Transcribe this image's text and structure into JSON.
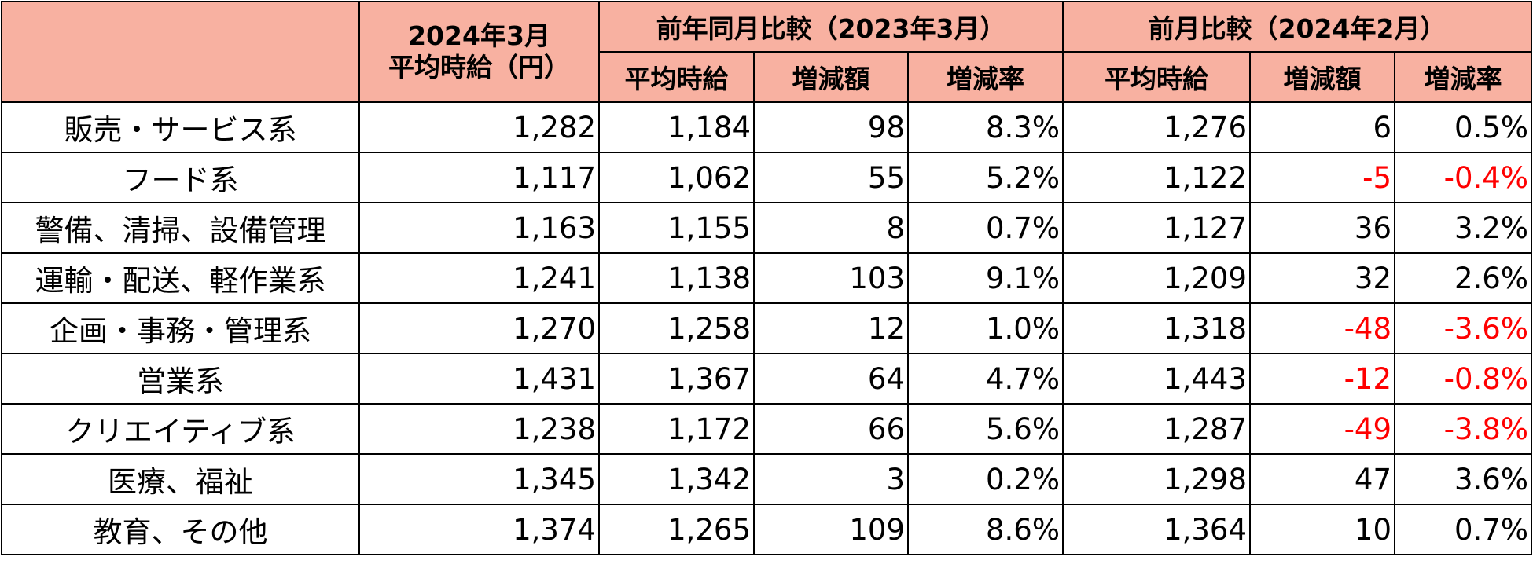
{
  "table": {
    "header": {
      "corner": "",
      "current": [
        "2024年3月",
        "平均時給（円）"
      ],
      "groups": [
        "前年同月比較（2023年3月）",
        "前月比較（2024年2月）"
      ],
      "subheaders": [
        "平均時給",
        "増減額",
        "増減率",
        "平均時給",
        "増減額",
        "増減率"
      ]
    },
    "rows": [
      [
        "販売・サービス系",
        "1,282",
        "1,184",
        "98",
        "8.3%",
        "1,276",
        "6",
        "0.5%"
      ],
      [
        "フード系",
        "1,117",
        "1,062",
        "55",
        "5.2%",
        "1,122",
        "-5",
        "-0.4%"
      ],
      [
        "警備、清掃、設備管理",
        "1,163",
        "1,155",
        "8",
        "0.7%",
        "1,127",
        "36",
        "3.2%"
      ],
      [
        "運輸・配送、軽作業系",
        "1,241",
        "1,138",
        "103",
        "9.1%",
        "1,209",
        "32",
        "2.6%"
      ],
      [
        "企画・事務・管理系",
        "1,270",
        "1,258",
        "12",
        "1.0%",
        "1,318",
        "-48",
        "-3.6%"
      ],
      [
        "営業系",
        "1,431",
        "1,367",
        "64",
        "4.7%",
        "1,443",
        "-12",
        "-0.8%"
      ],
      [
        "クリエイティブ系",
        "1,238",
        "1,172",
        "66",
        "5.6%",
        "1,287",
        "-49",
        "-3.8%"
      ],
      [
        "医療、福祉",
        "1,345",
        "1,342",
        "3",
        "0.2%",
        "1,298",
        "47",
        "3.6%"
      ],
      [
        "教育、その他",
        "1,374",
        "1,265",
        "109",
        "8.6%",
        "1,364",
        "10",
        "0.7%"
      ]
    ]
  }
}
